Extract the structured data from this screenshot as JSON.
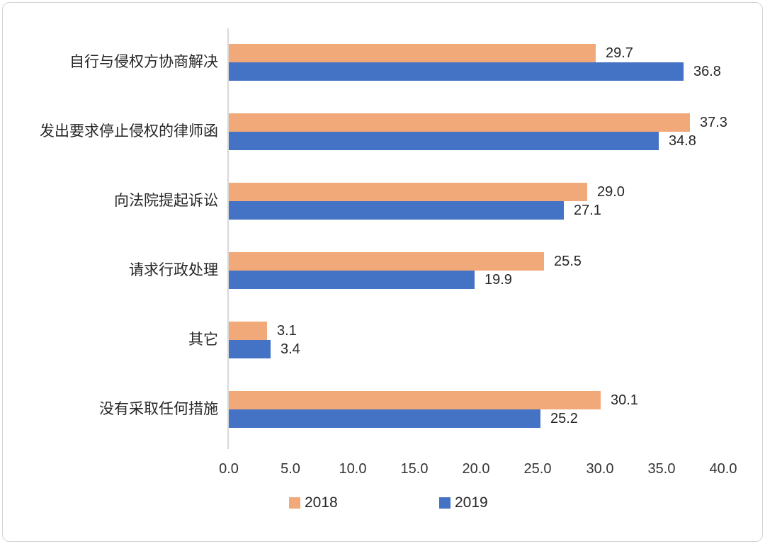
{
  "chart_data": {
    "type": "bar",
    "orientation": "horizontal",
    "title": "",
    "xlabel": "",
    "ylabel": "",
    "categories": [
      "自行与侵权方协商解决",
      "发出要求停止侵权的律师函",
      "向法院提起诉讼",
      "请求行政处理",
      "其它",
      "没有采取任何措施"
    ],
    "series": [
      {
        "name": "2018",
        "color": "#F2A979",
        "values": [
          29.7,
          37.3,
          29.0,
          25.5,
          3.1,
          30.1
        ]
      },
      {
        "name": "2019",
        "color": "#4472C4",
        "values": [
          36.8,
          34.8,
          27.1,
          19.9,
          3.4,
          25.2
        ]
      }
    ],
    "x_ticks": [
      "0.0",
      "5.0",
      "10.0",
      "15.0",
      "20.0",
      "25.0",
      "30.0",
      "35.0",
      "40.0"
    ],
    "xlim": [
      0,
      40
    ],
    "value_label_decimals": 1,
    "grid": false,
    "legend_position": "bottom",
    "axis_color": "#d9d9d9",
    "text_color": "#262626"
  }
}
